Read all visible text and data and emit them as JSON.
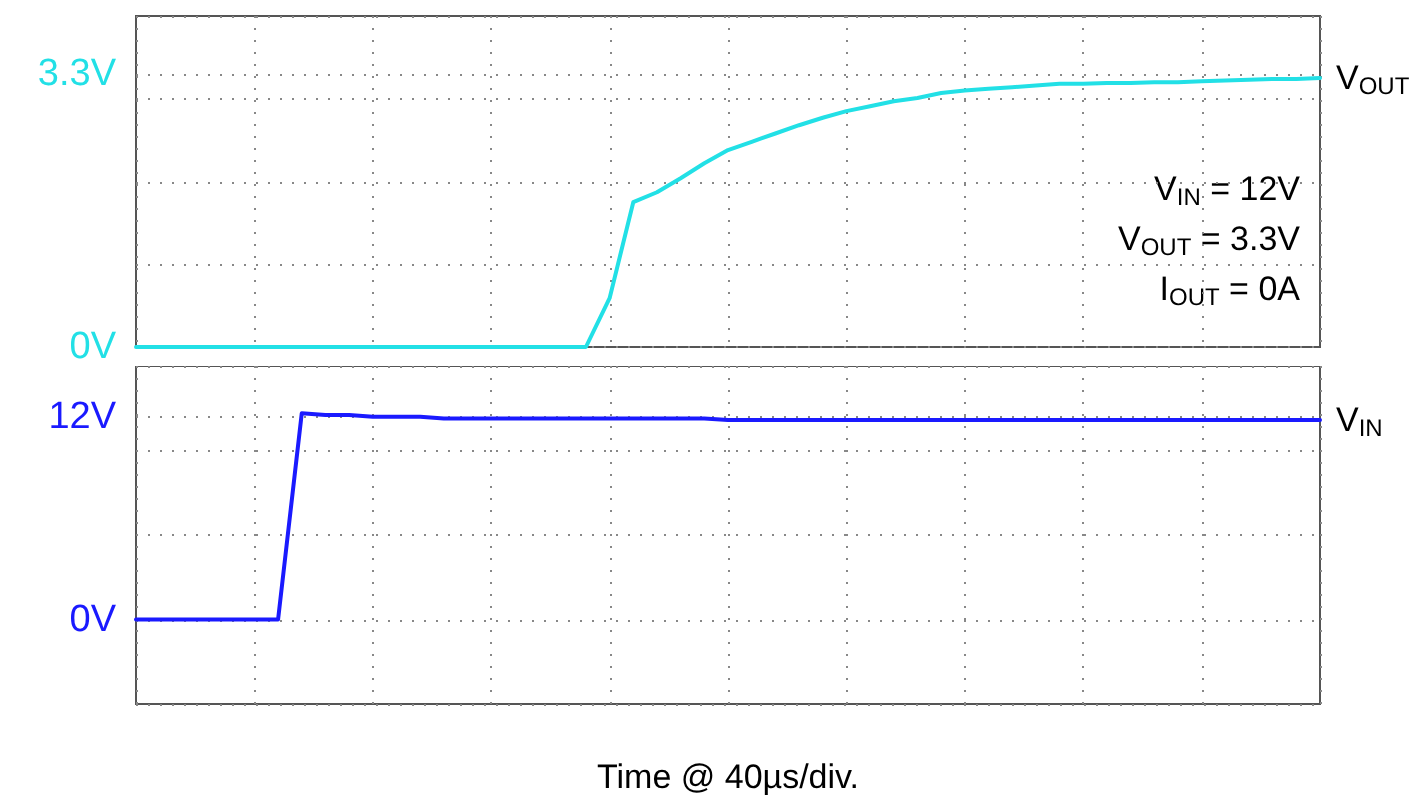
{
  "chart_data": [
    {
      "type": "line",
      "categories": [
        null,
        null,
        null,
        null,
        null,
        null,
        null,
        null,
        null,
        null,
        null,
        null,
        null,
        null,
        null,
        null,
        null,
        null,
        null,
        null,
        null,
        null,
        null,
        null,
        null,
        null,
        null,
        null,
        null,
        null,
        null,
        null,
        null,
        null,
        null,
        null,
        null,
        null,
        null,
        null,
        null,
        null,
        null,
        null,
        null,
        null,
        null,
        null,
        null,
        null,
        null
      ],
      "ylim": [
        0,
        4
      ],
      "yticks": [
        {
          "value": 0,
          "label": "0V"
        },
        {
          "value": 1,
          "label": null
        },
        {
          "value": 2,
          "label": null
        },
        {
          "value": 3,
          "label": null
        },
        {
          "value": 3.3,
          "label": "3.3V"
        },
        {
          "value": 4,
          "label": null
        }
      ],
      "tick_labels": "y",
      "grid": true,
      "legend": false,
      "marker": "none",
      "line_style": "solid",
      "annotations": [
        "V$_{IN}$ = 12V",
        "V$_{OUT}$ = 3.3V",
        "I$_{OUT}$ = 0A"
      ],
      "series": [
        {
          "name": "V$_{OUT}$",
          "color": "#22e0e6",
          "values": [
            0,
            0,
            0,
            0,
            0,
            0,
            0,
            0,
            0,
            0,
            0,
            0,
            0,
            0,
            0,
            0,
            0,
            0,
            0,
            0,
            0.59,
            1.75,
            1.87,
            2.04,
            2.22,
            2.38,
            2.48,
            2.58,
            2.68,
            2.77,
            2.85,
            2.91,
            2.97,
            3.01,
            3.07,
            3.1,
            3.12,
            3.14,
            3.16,
            3.18,
            3.18,
            3.19,
            3.19,
            3.2,
            3.2,
            3.21,
            3.22,
            3.23,
            3.24,
            3.24,
            3.25
          ]
        }
      ]
    },
    {
      "type": "line",
      "categories": [
        null,
        null,
        null,
        null,
        null,
        null,
        null,
        null,
        null,
        null,
        null,
        null,
        null,
        null,
        null,
        null,
        null,
        null,
        null,
        null,
        null,
        null,
        null,
        null,
        null,
        null,
        null,
        null,
        null,
        null,
        null,
        null,
        null,
        null,
        null,
        null,
        null,
        null,
        null,
        null,
        null,
        null,
        null,
        null,
        null,
        null,
        null,
        null,
        null,
        null,
        null
      ],
      "ylim": [
        -5,
        15
      ],
      "yticks": [
        {
          "value": -5,
          "label": null
        },
        {
          "value": 0,
          "label": "0V"
        },
        {
          "value": 5,
          "label": null
        },
        {
          "value": 10,
          "label": null
        },
        {
          "value": 12,
          "label": "12V"
        },
        {
          "value": 15,
          "label": null
        }
      ],
      "tick_labels": "y",
      "grid": true,
      "legend": false,
      "marker": "none",
      "line_style": "solid",
      "xlabel": "Time @ 40µs/div.",
      "series": [
        {
          "name": "V$_{IN}$",
          "color": "#1a1aff",
          "values": [
            0,
            0,
            0,
            0,
            0,
            0,
            0,
            12.2,
            12.1,
            12.1,
            12,
            12,
            12,
            11.9,
            11.9,
            11.9,
            11.9,
            11.9,
            11.9,
            11.9,
            11.9,
            11.9,
            11.9,
            11.9,
            11.9,
            11.8,
            11.8,
            11.8,
            11.8,
            11.8,
            11.8,
            11.8,
            11.8,
            11.8,
            11.8,
            11.8,
            11.8,
            11.8,
            11.8,
            11.8,
            11.8,
            11.8,
            11.8,
            11.8,
            11.8,
            11.8,
            11.8,
            11.8,
            11.8,
            11.8,
            11.8
          ]
        }
      ]
    }
  ]
}
